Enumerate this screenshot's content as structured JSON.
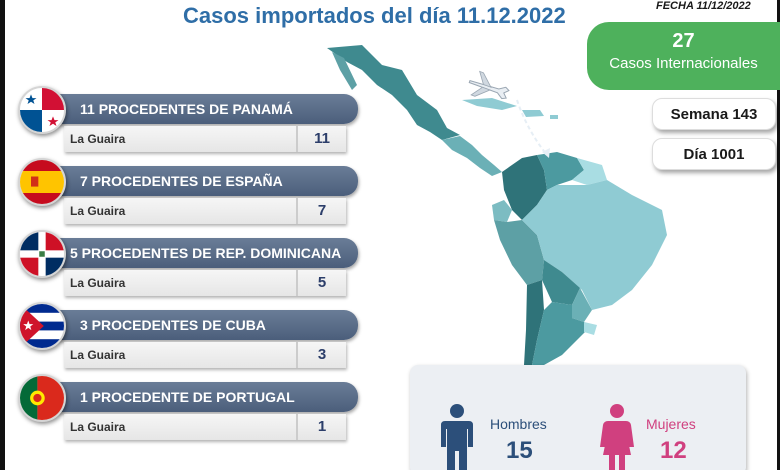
{
  "header": {
    "title": "Casos importados del día 11.12.2022",
    "fecha": "FECHA 11/12/2022"
  },
  "international": {
    "count": "27",
    "label": "Casos Internacionales"
  },
  "semana": "Semana 143",
  "dia": "Día 1001",
  "origins": [
    {
      "title": "11 PROCEDENTES DE PANAMÁ",
      "flag": "panama-flag-icon",
      "entry": "La Guaira",
      "count": "11"
    },
    {
      "title": "7 PROCEDENTES DE ESPAÑA",
      "flag": "spain-flag-icon",
      "entry": "La Guaira",
      "count": "7"
    },
    {
      "title": "5 PROCEDENTES DE REP. DOMINICANA",
      "flag": "dominican-republic-flag-icon",
      "entry": "La Guaira",
      "count": "5"
    },
    {
      "title": "3 PROCEDENTES DE CUBA",
      "flag": "cuba-flag-icon",
      "entry": "La Guaira",
      "count": "3"
    },
    {
      "title": "1 PROCEDENTE DE PORTUGAL",
      "flag": "portugal-flag-icon",
      "entry": "La Guaira",
      "count": "1"
    }
  ],
  "gender": {
    "men_label": "Hombres",
    "men_count": "15",
    "women_label": "Mujeres",
    "women_count": "12"
  },
  "colors": {
    "title": "#2f6ea7",
    "international_box": "#4eb15c",
    "header_bar": "#56698a",
    "map_dark": "#3f8a8f",
    "map_light": "#8fcbd3",
    "men": "#2c4f7a",
    "women": "#d0407f"
  }
}
